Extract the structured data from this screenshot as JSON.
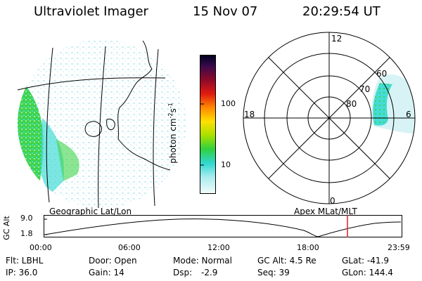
{
  "header": {
    "title": "Ultraviolet Imager",
    "date": "15 Nov 07",
    "time": "20:29:54 UT"
  },
  "colorbar": {
    "label": "photon cm",
    "label_sup1": "-2",
    "label_mid": "s",
    "label_sup2": "-1",
    "ticks": [
      "100",
      "10"
    ]
  },
  "polar_plot": {
    "labels": [
      "12",
      "18",
      "6",
      "0",
      "60",
      "70",
      "80"
    ]
  },
  "orbit": {
    "left_label": "Geographic Lat/Lon",
    "right_label": "Apex MLat/MLT",
    "y_axis_label": "GC Alt",
    "y_ticks": [
      "9.0",
      "1.8"
    ],
    "x_ticks": [
      "00:00",
      "06:00",
      "12:00",
      "18:00",
      "23:59"
    ]
  },
  "footer": {
    "row1": {
      "flt": "Flt: LBHL",
      "door": "Door: Open",
      "mode": "Mode: Normal",
      "gcalt": "GC Alt: 4.5 Re",
      "glat": "GLat: -41.9"
    },
    "row2": {
      "ip": "IP: 36.0",
      "gain": "Gain: 14",
      "dsp_label": "Dsp:",
      "dsp_value": "-2.9",
      "seq": "Seq: 39",
      "glon": "GLon: 144.4"
    }
  },
  "colors": {
    "aurora_green": "#3fd34a",
    "aurora_cyan": "#45dcd6",
    "faint_cyan": "#bfeef0",
    "current_marker": "#e21b2a"
  }
}
